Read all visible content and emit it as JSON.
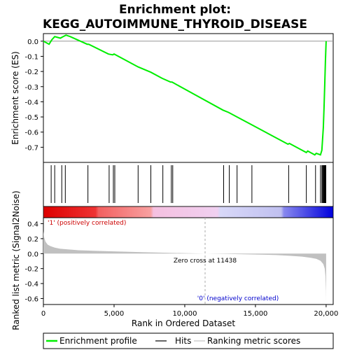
{
  "chart_data": {
    "type": "line",
    "title": "Enrichment plot:",
    "subtitle": "KEGG_AUTOIMMUNE_THYROID_DISEASE",
    "es_panel": {
      "ylabel": "Enrichment score (ES)",
      "ylim": [
        -0.8,
        0.05
      ],
      "yticks": [
        0.0,
        -0.1,
        -0.2,
        -0.3,
        -0.4,
        -0.5,
        -0.6,
        -0.7
      ],
      "ytick_labels": [
        "0.0",
        "-0.1",
        "-0.2",
        "-0.3",
        "-0.4",
        "-0.5",
        "-0.6",
        "-0.7"
      ],
      "line_color": "#00ee00",
      "x": [
        0,
        400,
        600,
        800,
        1200,
        1400,
        1600,
        1900,
        3100,
        3200,
        4600,
        4900,
        5000,
        5100,
        6700,
        7600,
        8400,
        9000,
        9100,
        12700,
        13100,
        13700,
        14700,
        17300,
        17400,
        18600,
        18700,
        19200,
        19300,
        19600,
        19700,
        19800,
        19850,
        19900,
        19950,
        20000
      ],
      "y": [
        0.0,
        -0.02,
        0.01,
        0.03,
        0.02,
        0.03,
        0.04,
        0.03,
        -0.02,
        -0.02,
        -0.085,
        -0.09,
        -0.085,
        -0.09,
        -0.17,
        -0.205,
        -0.245,
        -0.27,
        -0.27,
        -0.455,
        -0.47,
        -0.5,
        -0.55,
        -0.68,
        -0.675,
        -0.735,
        -0.725,
        -0.75,
        -0.74,
        -0.75,
        -0.72,
        -0.57,
        -0.44,
        -0.29,
        -0.13,
        0.0
      ]
    },
    "hits": {
      "color": "#000000",
      "positions": [
        550,
        800,
        1300,
        1550,
        3150,
        4650,
        4950,
        5050,
        6700,
        7600,
        8450,
        9050,
        9150,
        12750,
        13150,
        13700,
        14750,
        17350,
        18600,
        19250,
        19600,
        19700,
        19750,
        19800,
        19830,
        19860,
        19880,
        19900,
        19920,
        19940,
        19960,
        19980
      ]
    },
    "color_bar": {
      "label_positive": "'1' (positively correlated)",
      "label_negative": "'0' (negatively correlated)",
      "positive_color": "#dd0000",
      "negative_color": "#0000dd"
    },
    "metric_panel": {
      "ylabel": "Ranked list metric (Signal2Noise)",
      "ylim": [
        -0.68,
        0.48
      ],
      "yticks": [
        0.4,
        0.2,
        0.0,
        -0.2,
        -0.4,
        -0.6
      ],
      "ytick_labels": [
        "0.4",
        "0.2",
        "0.0",
        "-0.2",
        "-0.4",
        "-0.6"
      ],
      "fill_color": "#c0c0c0",
      "zero_cross_label": "Zero cross at 11438",
      "zero_cross": 11438,
      "x": [
        0,
        50,
        150,
        300,
        500,
        800,
        1200,
        1800,
        2500,
        3500,
        5000,
        7000,
        9000,
        11438,
        13000,
        15000,
        16500,
        17500,
        18300,
        18900,
        19300,
        19600,
        19800,
        19900,
        19950,
        19990,
        20000
      ],
      "y": [
        0.3,
        0.22,
        0.16,
        0.12,
        0.1,
        0.08,
        0.065,
        0.055,
        0.045,
        0.038,
        0.03,
        0.02,
        0.01,
        0.0,
        -0.005,
        -0.012,
        -0.02,
        -0.03,
        -0.04,
        -0.055,
        -0.07,
        -0.095,
        -0.14,
        -0.2,
        -0.3,
        -0.5,
        -0.64
      ]
    },
    "xlabel": "Rank in Ordered Dataset",
    "xlim": [
      0,
      20500
    ],
    "xticks": [
      0,
      5000,
      10000,
      15000,
      20000
    ],
    "xtick_labels": [
      "0",
      "5,000",
      "10,000",
      "15,000",
      "20,000"
    ],
    "legend": {
      "placement": "bottom",
      "entries": [
        {
          "label": "Enrichment profile",
          "color": "#00ee00"
        },
        {
          "label": "Hits",
          "color": "#000000"
        },
        {
          "label": "Ranking metric scores",
          "color": "#c0c0c0"
        }
      ]
    }
  }
}
